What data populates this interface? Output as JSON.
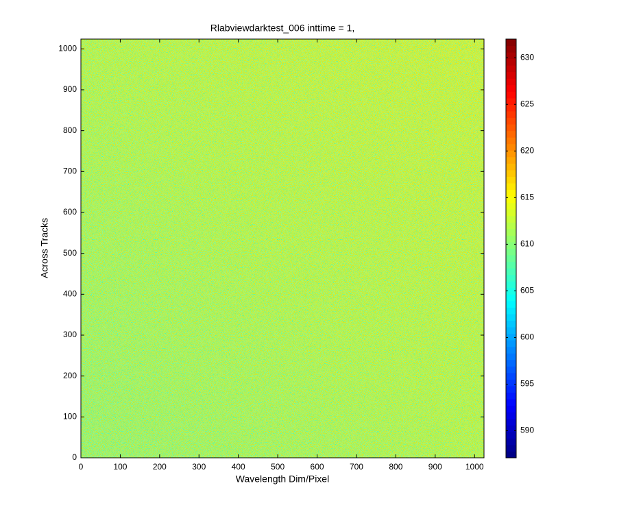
{
  "chart_data": {
    "type": "heatmap",
    "title": "Rlabviewdarktest_006 inttime = 1,",
    "xlabel": "Wavelength Dim/Pixel",
    "ylabel": "Across Tracks",
    "xlim": [
      0,
      1024
    ],
    "ylim": [
      0,
      1024
    ],
    "xticks": [
      0,
      100,
      200,
      300,
      400,
      500,
      600,
      700,
      800,
      900,
      1000
    ],
    "yticks": [
      0,
      100,
      200,
      300,
      400,
      500,
      600,
      700,
      800,
      900,
      1000
    ],
    "colormap": "jet",
    "clim": [
      587.1,
      632
    ],
    "cticks": [
      590,
      595,
      600,
      605,
      610,
      615,
      620,
      625,
      630
    ]
  }
}
